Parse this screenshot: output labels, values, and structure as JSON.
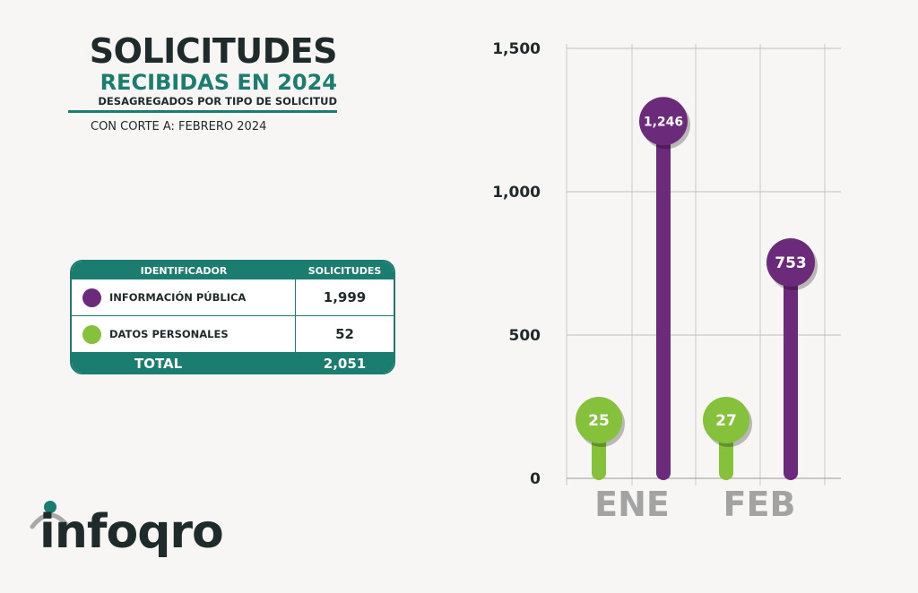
{
  "header": {
    "title": "SOLICITUDES",
    "subtitle": "RECIBIDAS EN 2024",
    "subtitle2": "DESAGREGADOS POR TIPO DE SOLICITUD",
    "cutoff": "CON CORTE A: FEBRERO 2024"
  },
  "table": {
    "col1": "IDENTIFICADOR",
    "col2": "SOLICITUDES",
    "rows": [
      {
        "label": "INFORMACIÓN PÚBLICA",
        "value": "1,999",
        "color": "#6b2a7a"
      },
      {
        "label": "DATOS PERSONALES",
        "value": "52",
        "color": "#86c13b"
      }
    ],
    "total_label": "TOTAL",
    "total_value": "2,051"
  },
  "logo": {
    "text": "infoqro"
  },
  "chart_data": {
    "type": "bar",
    "categories": [
      "ENE",
      "FEB"
    ],
    "series": [
      {
        "values": [
          25,
          27
        ],
        "labels": [
          "25",
          "27"
        ],
        "color": "#86c13b"
      },
      {
        "values": [
          1246,
          753
        ],
        "labels": [
          "1,246",
          "753"
        ],
        "color": "#6b2a7a"
      }
    ],
    "yticks": [
      "0",
      "500",
      "1,000",
      "1,500"
    ],
    "ytick_values": [
      0,
      500,
      1000,
      1500
    ],
    "ylim": [
      0,
      1500
    ],
    "grid": true
  }
}
